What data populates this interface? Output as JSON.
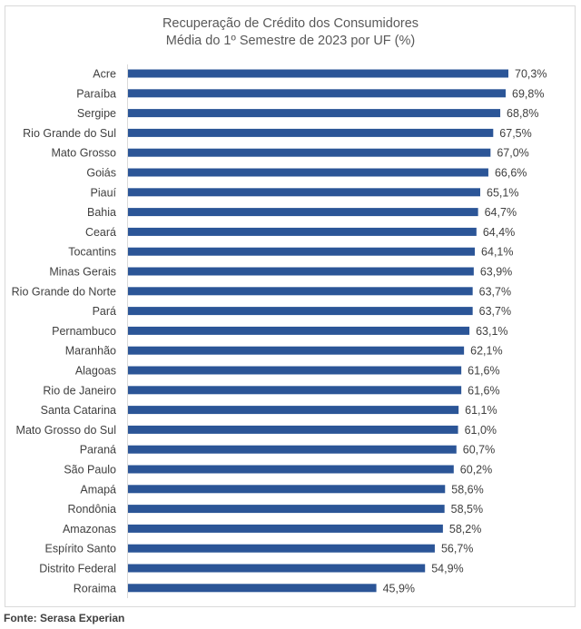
{
  "chart_data": {
    "type": "bar",
    "orientation": "horizontal",
    "title": "Recuperação de Crédito dos Consumidores",
    "subtitle": "Média do 1º Semestre de 2023 por UF (%)",
    "xlabel": "",
    "ylabel": "",
    "xlim": [
      0,
      70.3
    ],
    "grid": false,
    "legend": "none",
    "bar_color": "#2B5597",
    "categories": [
      "Acre",
      "Paraíba",
      "Sergipe",
      "Rio Grande do Sul",
      "Mato Grosso",
      "Goiás",
      "Piauí",
      "Bahia",
      "Ceará",
      "Tocantins",
      "Minas Gerais",
      "Rio Grande do Norte",
      "Pará",
      "Pernambuco",
      "Maranhão",
      "Alagoas",
      "Rio de Janeiro",
      "Santa Catarina",
      "Mato Grosso do Sul",
      "Paraná",
      "São Paulo",
      "Amapá",
      "Rondônia",
      "Amazonas",
      "Espírito Santo",
      "Distrito Federal",
      "Roraima"
    ],
    "values": [
      70.3,
      69.8,
      68.8,
      67.5,
      67.0,
      66.6,
      65.1,
      64.7,
      64.4,
      64.1,
      63.9,
      63.7,
      63.7,
      63.1,
      62.1,
      61.6,
      61.6,
      61.1,
      61.0,
      60.7,
      60.2,
      58.6,
      58.5,
      58.2,
      56.7,
      54.9,
      45.9
    ],
    "data_labels": [
      "70,3%",
      "69,8%",
      "68,8%",
      "67,5%",
      "67,0%",
      "66,6%",
      "65,1%",
      "64,7%",
      "64,4%",
      "64,1%",
      "63,9%",
      "63,7%",
      "63,7%",
      "63,1%",
      "62,1%",
      "61,6%",
      "61,6%",
      "61,1%",
      "61,0%",
      "60,7%",
      "60,2%",
      "58,6%",
      "58,5%",
      "58,2%",
      "56,7%",
      "54,9%",
      "45,9%"
    ]
  },
  "footer": {
    "source": "Fonte: Serasa Experian"
  }
}
